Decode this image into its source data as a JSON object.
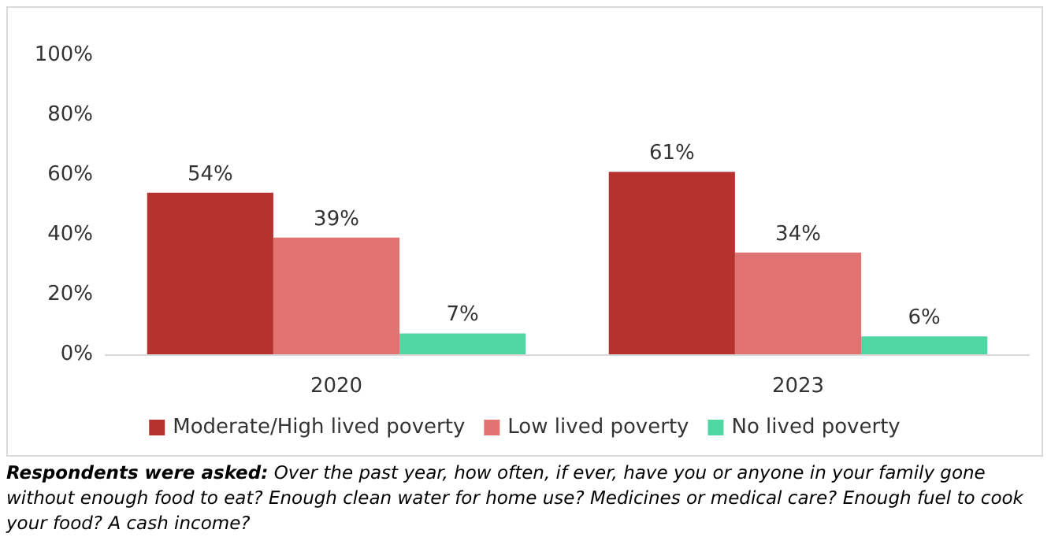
{
  "chart_data": {
    "type": "bar",
    "categories": [
      "2020",
      "2023"
    ],
    "series": [
      {
        "name": "Moderate/High lived poverty",
        "color": "#b5322e",
        "values": [
          54,
          61
        ],
        "value_labels": [
          "54%",
          "61%"
        ]
      },
      {
        "name": "Low lived poverty",
        "color": "#e07272",
        "values": [
          39,
          34
        ],
        "value_labels": [
          "39%",
          "34%"
        ]
      },
      {
        "name": "No lived poverty",
        "color": "#4fd6a2",
        "values": [
          7,
          6
        ],
        "value_labels": [
          "7%",
          "6%"
        ]
      }
    ],
    "ylim": [
      0,
      100
    ],
    "yticks": [
      {
        "value": 0,
        "label": "0%"
      },
      {
        "value": 20,
        "label": "20%"
      },
      {
        "value": 40,
        "label": "40%"
      },
      {
        "value": 60,
        "label": "60%"
      },
      {
        "value": 80,
        "label": "80%"
      },
      {
        "value": 100,
        "label": "100%"
      }
    ],
    "grid": false,
    "legend": "bottom",
    "annotations": [
      "Respondents were asked: Over the past year, how often, if ever, have you or anyone in your family gone without enough food to eat? Enough clean water for home use? Medicines or medical care? Enough fuel to cook your food? A cash income?"
    ]
  }
}
